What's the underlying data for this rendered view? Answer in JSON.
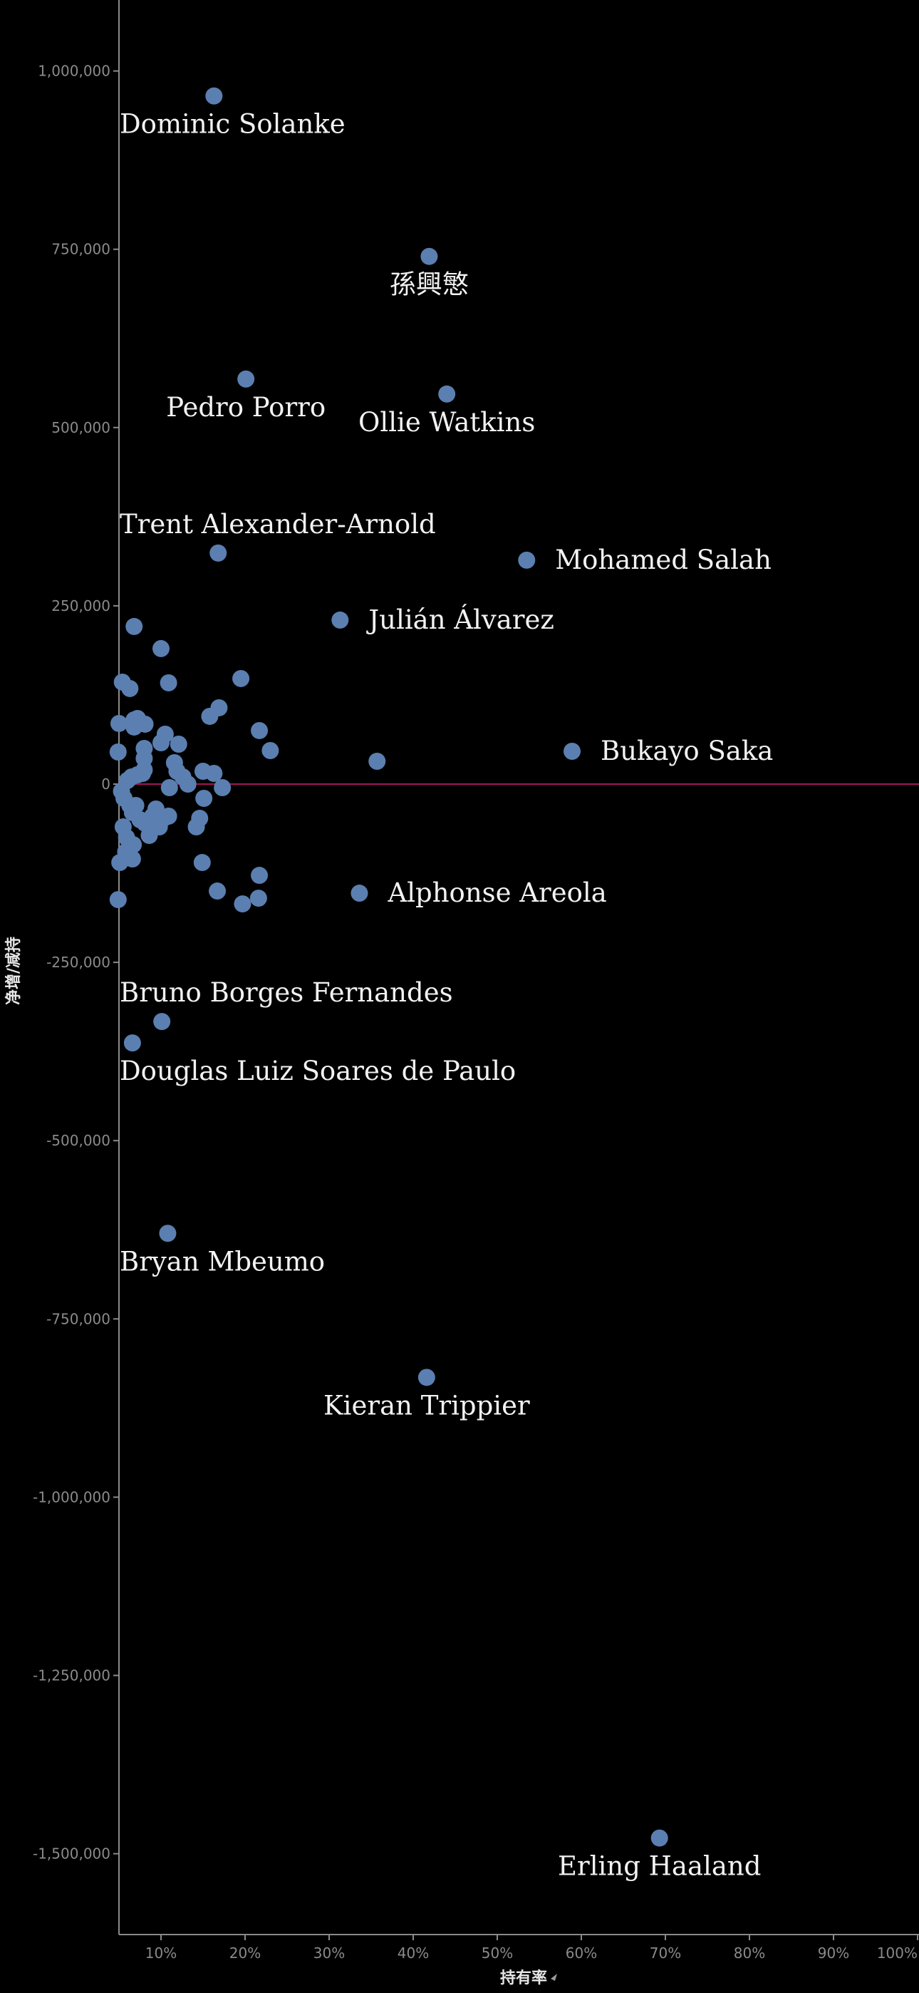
{
  "chart_data": {
    "type": "scatter",
    "title": "",
    "xlabel": "持有率",
    "ylabel": "净增/减持",
    "sort_icon": "sort-arrow-icon",
    "x_unit": "%",
    "xlim": [
      5,
      100
    ],
    "ylim": [
      -1600000,
      1060000
    ],
    "x_ticks": [
      {
        "value": 10,
        "label": "10%"
      },
      {
        "value": 20,
        "label": "20%"
      },
      {
        "value": 30,
        "label": "30%"
      },
      {
        "value": 40,
        "label": "40%"
      },
      {
        "value": 50,
        "label": "50%"
      },
      {
        "value": 60,
        "label": "60%"
      },
      {
        "value": 70,
        "label": "70%"
      },
      {
        "value": 80,
        "label": "80%"
      },
      {
        "value": 90,
        "label": "90%"
      },
      {
        "value": 100,
        "label": "100%"
      }
    ],
    "y_ticks": [
      {
        "value": 1000000,
        "label": "1,000,000"
      },
      {
        "value": 750000,
        "label": "750,000"
      },
      {
        "value": 500000,
        "label": "500,000"
      },
      {
        "value": 250000,
        "label": "250,000"
      },
      {
        "value": 0,
        "label": "0"
      },
      {
        "value": -250000,
        "label": "-250,000"
      },
      {
        "value": -500000,
        "label": "-500,000"
      },
      {
        "value": -750000,
        "label": "-750,000"
      },
      {
        "value": -1000000,
        "label": "-1,000,000"
      },
      {
        "value": -1250000,
        "label": "-1,250,000"
      },
      {
        "value": -1500000,
        "label": "-1,500,000"
      }
    ],
    "zero_line": true,
    "grid": false,
    "colors": {
      "point": "#5b7fb0",
      "zero_line": "#a3155a",
      "axis": "#8a8a8a",
      "label": "#f2f2f2",
      "background": "#000000"
    },
    "labeled_points": [
      {
        "name": "Dominic Solanke",
        "x": 16.3,
        "y": 965000,
        "label_pos": "below"
      },
      {
        "name": "孫興慜",
        "x": 41.9,
        "y": 740000,
        "label_pos": "below"
      },
      {
        "name": "Pedro Porro",
        "x": 20.1,
        "y": 568000,
        "label_pos": "below"
      },
      {
        "name": "Ollie Watkins",
        "x": 44.0,
        "y": 547000,
        "label_pos": "below"
      },
      {
        "name": "Trent Alexander-Arnold",
        "x": 16.8,
        "y": 324000,
        "label_pos": "above"
      },
      {
        "name": "Mohamed Salah",
        "x": 53.5,
        "y": 314000,
        "label_pos": "right"
      },
      {
        "name": "Julián Álvarez",
        "x": 31.3,
        "y": 230000,
        "label_pos": "right"
      },
      {
        "name": "Bukayo Saka",
        "x": 58.9,
        "y": 46000,
        "label_pos": "right"
      },
      {
        "name": "Alphonse Areola",
        "x": 33.6,
        "y": -153000,
        "label_pos": "right"
      },
      {
        "name": "Bruno Borges Fernandes",
        "x": 10.1,
        "y": -333000,
        "label_pos": "above"
      },
      {
        "name": "Douglas Luiz Soares de Paulo",
        "x": 6.6,
        "y": -363000,
        "label_pos": "below"
      },
      {
        "name": "Bryan Mbeumo",
        "x": 10.8,
        "y": -630000,
        "label_pos": "below"
      },
      {
        "name": "Kieran Trippier",
        "x": 41.6,
        "y": -832000,
        "label_pos": "below"
      },
      {
        "name": "Erling Haaland",
        "x": 69.3,
        "y": -1478000,
        "label_pos": "below"
      }
    ],
    "other_points": [
      [
        5.0,
        85000
      ],
      [
        4.9,
        45000
      ],
      [
        5.4,
        143000
      ],
      [
        6.3,
        134000
      ],
      [
        6.8,
        221000
      ],
      [
        10.0,
        190000
      ],
      [
        10.9,
        142000
      ],
      [
        19.5,
        148000
      ],
      [
        6.8,
        90000
      ],
      [
        6.8,
        80000
      ],
      [
        7.2,
        92000
      ],
      [
        8.1,
        84000
      ],
      [
        8.0,
        50000
      ],
      [
        8.0,
        36000
      ],
      [
        8.0,
        20000
      ],
      [
        6.0,
        5000
      ],
      [
        6.5,
        10000
      ],
      [
        7.2,
        13000
      ],
      [
        7.8,
        15000
      ],
      [
        10.0,
        58000
      ],
      [
        10.5,
        70000
      ],
      [
        12.1,
        56000
      ],
      [
        16.9,
        107000
      ],
      [
        15.8,
        95000
      ],
      [
        21.7,
        75000
      ],
      [
        23.0,
        47000
      ],
      [
        35.7,
        32000
      ],
      [
        11.6,
        30000
      ],
      [
        11.9,
        18000
      ],
      [
        12.6,
        10000
      ],
      [
        13.2,
        0
      ],
      [
        11.0,
        -5000
      ],
      [
        15.0,
        18000
      ],
      [
        16.3,
        15000
      ],
      [
        17.3,
        -5000
      ],
      [
        15.1,
        -20000
      ],
      [
        5.3,
        -10000
      ],
      [
        5.6,
        -20000
      ],
      [
        6.3,
        -30000
      ],
      [
        6.6,
        -40000
      ],
      [
        7.0,
        -30000
      ],
      [
        7.5,
        -50000
      ],
      [
        8.1,
        -55000
      ],
      [
        9.0,
        -45000
      ],
      [
        9.4,
        -35000
      ],
      [
        10.3,
        -48000
      ],
      [
        10.9,
        -45000
      ],
      [
        9.8,
        -60000
      ],
      [
        8.6,
        -72000
      ],
      [
        6.7,
        -85000
      ],
      [
        5.8,
        -95000
      ],
      [
        5.1,
        -110000
      ],
      [
        6.6,
        -105000
      ],
      [
        14.2,
        -60000
      ],
      [
        14.6,
        -48000
      ],
      [
        14.9,
        -110000
      ],
      [
        16.7,
        -150000
      ],
      [
        19.7,
        -168000
      ],
      [
        21.7,
        -128000
      ],
      [
        21.6,
        -160000
      ],
      [
        4.9,
        -162000
      ],
      [
        5.5,
        -60000
      ],
      [
        5.9,
        -75000
      ]
    ]
  }
}
